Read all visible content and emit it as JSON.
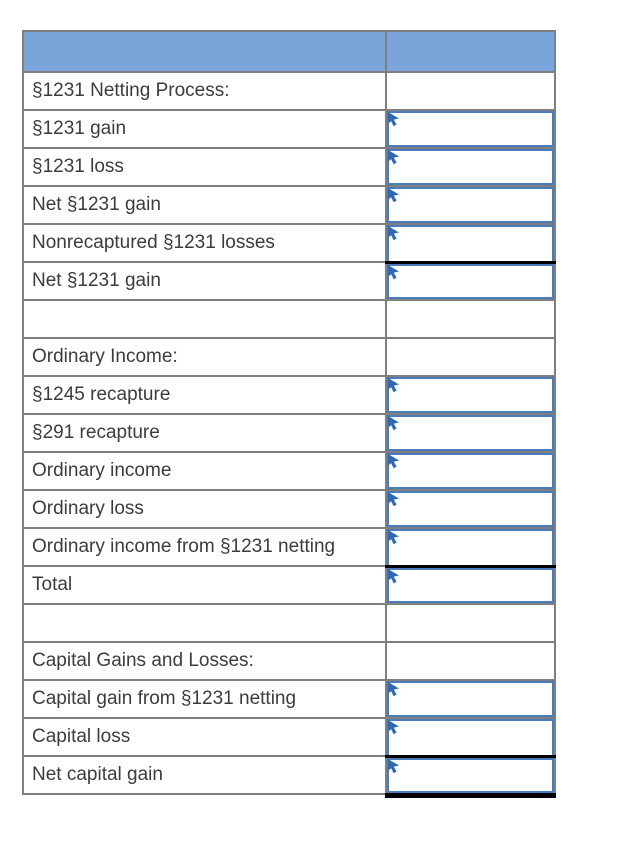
{
  "table": {
    "header": {
      "col1": "",
      "col2": ""
    },
    "rows": [
      {
        "label": "§1231 Netting Process:",
        "kind": "section",
        "input": false,
        "underline": "none"
      },
      {
        "label": "§1231 gain",
        "kind": "item",
        "input": true,
        "underline": "none"
      },
      {
        "label": "§1231 loss",
        "kind": "item",
        "input": true,
        "underline": "none"
      },
      {
        "label": "Net §1231 gain",
        "kind": "item",
        "input": true,
        "underline": "none"
      },
      {
        "label": "Nonrecaptured §1231 losses",
        "kind": "item",
        "input": true,
        "underline": "single"
      },
      {
        "label": "Net §1231 gain",
        "kind": "item",
        "input": true,
        "underline": "none"
      },
      {
        "label": "",
        "kind": "spacer",
        "input": false,
        "underline": "none"
      },
      {
        "label": "Ordinary Income:",
        "kind": "section",
        "input": false,
        "underline": "none"
      },
      {
        "label": "§1245 recapture",
        "kind": "item",
        "input": true,
        "underline": "none"
      },
      {
        "label": "§291 recapture",
        "kind": "item",
        "input": true,
        "underline": "none"
      },
      {
        "label": "Ordinary income",
        "kind": "item",
        "input": true,
        "underline": "none"
      },
      {
        "label": "Ordinary loss",
        "kind": "item",
        "input": true,
        "underline": "none"
      },
      {
        "label": "Ordinary income from §1231 netting",
        "kind": "item",
        "input": true,
        "underline": "single"
      },
      {
        "label": "Total",
        "kind": "item",
        "input": true,
        "underline": "none"
      },
      {
        "label": "",
        "kind": "spacer",
        "input": false,
        "underline": "none"
      },
      {
        "label": "Capital Gains and Losses:",
        "kind": "section",
        "input": false,
        "underline": "none"
      },
      {
        "label": "Capital gain from §1231 netting",
        "kind": "item",
        "input": true,
        "underline": "none"
      },
      {
        "label": "Capital loss",
        "kind": "item",
        "input": true,
        "underline": "single"
      },
      {
        "label": "Net capital gain",
        "kind": "item",
        "input": true,
        "underline": "double"
      }
    ],
    "input_values": {
      "all_cells_empty": ""
    }
  },
  "icons": {
    "input_marker": "cursor-arrow-icon"
  },
  "colors": {
    "header_fill": "#7AA5DA",
    "grid_border": "#7F7F7F",
    "input_border": "#4A7CBA",
    "marker_blue": "#2F69B3",
    "underline_black": "#000000",
    "label_text": "#3C3C3C",
    "background": "#FFFFFF"
  }
}
